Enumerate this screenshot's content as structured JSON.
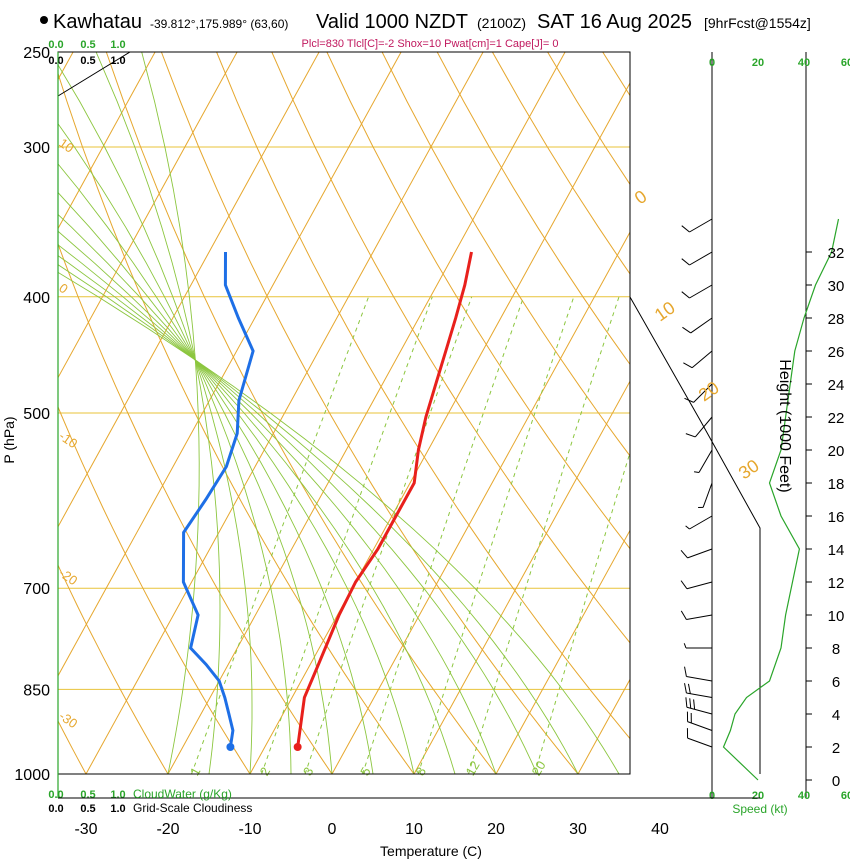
{
  "header": {
    "station": "Kawhatau",
    "coords": "-39.812°,175.989° (63,60)",
    "valid_label": "Valid 1000 NZDT",
    "utc": "(2100Z)",
    "date": "SAT 16 Aug 2025",
    "forecast": "[9hrFcst@1554z]",
    "parcel_info": "Plcl=830 Tlcl[C]=-2 Shox=10 Pwat[cm]=1 Cape[J]= 0"
  },
  "chart_data": {
    "type": "line",
    "title": "Kawhatau Valid 1000 NZDT (2100Z) SAT 16 Aug 2025 [9hrFcst@1554z]",
    "xlabel": "Temperature (C)",
    "ylabel": "P (hPa)",
    "y2label": "Height (1000 Feet)",
    "x_ticks": [
      "-30",
      "-20",
      "-10",
      "0",
      "10",
      "20",
      "30",
      "40"
    ],
    "y_ticks": [
      "250",
      "300",
      "400",
      "500",
      "700",
      "850",
      "1000"
    ],
    "height_ticks": [
      "0",
      "2",
      "4",
      "6",
      "8",
      "10",
      "12",
      "14",
      "16",
      "18",
      "20",
      "22",
      "24",
      "26",
      "28",
      "30",
      "32"
    ],
    "dry_adiabat_labels": [
      "-30",
      "-20",
      "-10",
      "0",
      "10",
      "20",
      "30"
    ],
    "isotherm_labels": [
      "0",
      "10",
      "20",
      "30"
    ],
    "mixing_ratio_labels": [
      "1",
      "2",
      "3",
      "5",
      "8",
      "12",
      "20"
    ],
    "top_scale": [
      "0.0",
      "0.5",
      "1.0"
    ],
    "top_scale2": [
      "0.0",
      "0.5",
      "1.0"
    ],
    "bottom_scale_cloudwater": [
      "0.0",
      "0.5",
      "1.0"
    ],
    "bottom_scale_cloudiness": [
      "0.0",
      "0.5",
      "1.0"
    ],
    "cloudwater_label": "CloudWater (g/Kg)",
    "cloudiness_label": "Grid-Scale Cloudiness",
    "speed_ticks": [
      "0",
      "20",
      "40",
      "60"
    ],
    "speed_label": "Speed (kt)",
    "series": [
      {
        "name": "Temperature",
        "color": "#e8201c",
        "points": [
          [
            2,
            -6
          ],
          [
            5,
            -8.5
          ],
          [
            7,
            -9
          ],
          [
            10,
            -9.8
          ],
          [
            12,
            -10
          ],
          [
            14,
            -9.5
          ],
          [
            16,
            -9.5
          ],
          [
            18,
            -9.5
          ],
          [
            20,
            -11.2
          ],
          [
            22,
            -12.5
          ],
          [
            24,
            -13.5
          ],
          [
            26,
            -14.5
          ],
          [
            28,
            -15.5
          ],
          [
            30,
            -16.6
          ],
          [
            32,
            -18
          ]
        ]
      },
      {
        "name": "Dewpoint",
        "color": "#1e6fe6",
        "points": [
          [
            2,
            -14.2
          ],
          [
            3,
            -15
          ],
          [
            4,
            -16.6
          ],
          [
            5,
            -18.2
          ],
          [
            6,
            -20
          ],
          [
            7,
            -22.7
          ],
          [
            8,
            -25.7
          ],
          [
            10,
            -27
          ],
          [
            12,
            -31
          ],
          [
            15,
            -34.3
          ],
          [
            17,
            -33.8
          ],
          [
            19,
            -33.5
          ],
          [
            21,
            -34.4
          ],
          [
            23,
            -36.4
          ],
          [
            26,
            -38
          ],
          [
            28,
            -42
          ],
          [
            30,
            -45.8
          ],
          [
            32,
            -48
          ]
        ]
      }
    ],
    "winds": [
      {
        "height": 2,
        "direction": 290,
        "speed": 10
      },
      {
        "height": 3,
        "direction": 290,
        "speed": 20
      },
      {
        "height": 4,
        "direction": 285,
        "speed": 30
      },
      {
        "height": 5,
        "direction": 280,
        "speed": 20
      },
      {
        "height": 6,
        "direction": 280,
        "speed": 10
      },
      {
        "height": 8,
        "direction": 270,
        "speed": 5
      },
      {
        "height": 10,
        "direction": 260,
        "speed": 10
      },
      {
        "height": 12,
        "direction": 255,
        "speed": 10
      },
      {
        "height": 14,
        "direction": 250,
        "speed": 10
      },
      {
        "height": 16,
        "direction": 240,
        "speed": 5
      },
      {
        "height": 18,
        "direction": 200,
        "speed": 5
      },
      {
        "height": 20,
        "direction": 210,
        "speed": 5
      },
      {
        "height": 22,
        "direction": 220,
        "speed": 10
      },
      {
        "height": 24,
        "direction": 225,
        "speed": 10
      },
      {
        "height": 26,
        "direction": 230,
        "speed": 10
      },
      {
        "height": 28,
        "direction": 235,
        "speed": 10
      },
      {
        "height": 30,
        "direction": 240,
        "speed": 10
      },
      {
        "height": 32,
        "direction": 240,
        "speed": 10
      },
      {
        "height": 34,
        "direction": 240,
        "speed": 10
      }
    ],
    "speed_profile": [
      [
        0,
        20
      ],
      [
        2,
        5
      ],
      [
        3,
        8
      ],
      [
        4,
        10
      ],
      [
        5,
        15
      ],
      [
        6,
        25
      ],
      [
        8,
        30
      ],
      [
        10,
        32
      ],
      [
        12,
        35
      ],
      [
        14,
        38
      ],
      [
        16,
        30
      ],
      [
        18,
        25
      ],
      [
        20,
        30
      ],
      [
        22,
        32
      ],
      [
        24,
        34
      ],
      [
        26,
        36
      ],
      [
        28,
        40
      ],
      [
        30,
        45
      ],
      [
        32,
        52
      ],
      [
        34,
        55
      ]
    ]
  }
}
